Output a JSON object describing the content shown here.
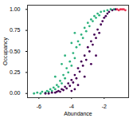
{
  "chart_data": {
    "type": "scatter",
    "x_label": "Abundance",
    "y_label": "Occupancy",
    "xlim": [
      -6.7,
      -0.5
    ],
    "ylim": [
      -0.05,
      1.05
    ],
    "xticks": [
      -6,
      -4,
      -2
    ],
    "yticks": [
      {
        "value": 0,
        "label": "0.00"
      },
      {
        "value": 0.25,
        "label": "0.25"
      },
      {
        "value": 0.5,
        "label": "0.50"
      },
      {
        "value": 0.75,
        "label": "0.75"
      },
      {
        "value": 1,
        "label": "1.00"
      }
    ],
    "grid": false,
    "series": [
      {
        "color": "#2db27d",
        "x": [
          -6.3,
          -6.1,
          -5.9,
          -5.8,
          -5.6,
          -5.5,
          -5.4,
          -5.3,
          -5.2,
          -5.1,
          -5.0,
          -4.9,
          -4.8,
          -4.7,
          -4.6,
          -4.5,
          -4.4,
          -4.3,
          -4.2,
          -4.1,
          -4.0,
          -3.9,
          -3.8,
          -3.7,
          -3.6,
          -3.5,
          -3.4,
          -3.3,
          -3.2,
          -3.1,
          -3.0,
          -2.9,
          -2.8,
          -2.7,
          -2.6,
          -2.5,
          -2.4,
          -2.3,
          -2.2,
          -2.0,
          -1.8,
          -1.6,
          -1.4,
          -4.4,
          -4.0,
          -3.8,
          -5.0,
          -4.6
        ],
        "values": [
          0.0,
          0.01,
          0.0,
          0.02,
          0.01,
          0.03,
          0.02,
          0.05,
          0.03,
          0.07,
          0.05,
          0.1,
          0.08,
          0.15,
          0.12,
          0.22,
          0.18,
          0.3,
          0.25,
          0.38,
          0.33,
          0.48,
          0.42,
          0.55,
          0.62,
          0.58,
          0.7,
          0.66,
          0.78,
          0.74,
          0.84,
          0.8,
          0.88,
          0.86,
          0.92,
          0.9,
          0.95,
          0.93,
          0.97,
          0.98,
          0.99,
          1.0,
          1.0,
          0.45,
          0.6,
          0.72,
          0.2,
          0.35
        ]
      },
      {
        "color": "#440154",
        "x": [
          -5.6,
          -5.4,
          -5.2,
          -5.0,
          -4.9,
          -4.8,
          -4.7,
          -4.6,
          -4.5,
          -4.4,
          -4.3,
          -4.2,
          -4.1,
          -4.0,
          -3.9,
          -3.8,
          -3.7,
          -3.6,
          -3.5,
          -3.4,
          -3.3,
          -3.2,
          -3.1,
          -3.0,
          -2.9,
          -2.8,
          -2.7,
          -2.6,
          -2.5,
          -2.4,
          -2.3,
          -2.2,
          -2.1,
          -2.0,
          -1.9,
          -1.8,
          -1.7,
          -1.5,
          -1.3,
          -3.6,
          -3.2,
          -2.8,
          -2.5,
          -4.0,
          -3.8
        ],
        "values": [
          0.0,
          0.0,
          0.01,
          0.01,
          0.02,
          0.03,
          0.02,
          0.05,
          0.04,
          0.08,
          0.06,
          0.12,
          0.09,
          0.16,
          0.13,
          0.22,
          0.18,
          0.3,
          0.26,
          0.38,
          0.33,
          0.45,
          0.4,
          0.55,
          0.5,
          0.62,
          0.58,
          0.7,
          0.66,
          0.76,
          0.72,
          0.82,
          0.86,
          0.9,
          0.92,
          0.95,
          0.97,
          0.99,
          1.0,
          0.1,
          0.2,
          0.35,
          0.45,
          0.03,
          0.05
        ]
      },
      {
        "color": "#e8304f",
        "x": [
          -1.2,
          -1.0,
          -0.9,
          -0.8,
          -0.7,
          -1.1
        ],
        "values": [
          1.0,
          1.0,
          1.0,
          1.0,
          0.99,
          0.99
        ]
      }
    ]
  }
}
